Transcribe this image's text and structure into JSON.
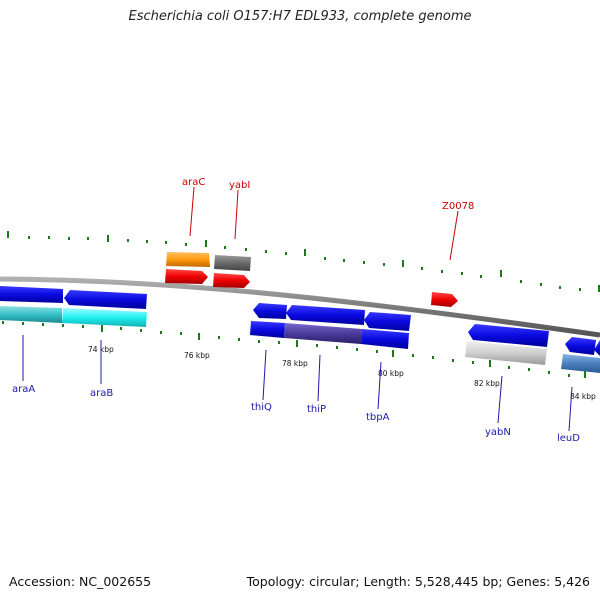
{
  "title": "Escherichia coli O157:H7 EDL933, complete genome",
  "footer": {
    "accession": "Accession: NC_002655",
    "stats": "Topology: circular; Length: 5,528,445 bp; Genes: 5,426"
  },
  "ticks": [
    "74 kbp",
    "76 kbp",
    "78 kbp",
    "80 kbp",
    "82 kbp",
    "84 kbp"
  ],
  "genes": {
    "araC": "araC",
    "yabI": "yabI",
    "Z0078": "Z0078",
    "araA": "araA",
    "araB": "araB",
    "thiQ": "thiQ",
    "thiP": "thiP",
    "tbpA": "tbpA",
    "yabN": "yabN",
    "leuD": "leuD"
  },
  "colors": {
    "forward_label": "#cc0000",
    "reverse_label": "#1a1aaa",
    "forward_cds": "#ee1111",
    "reverse_cds": "#1111dd",
    "backbone": "#888888",
    "tick": "#1a7a1a"
  }
}
